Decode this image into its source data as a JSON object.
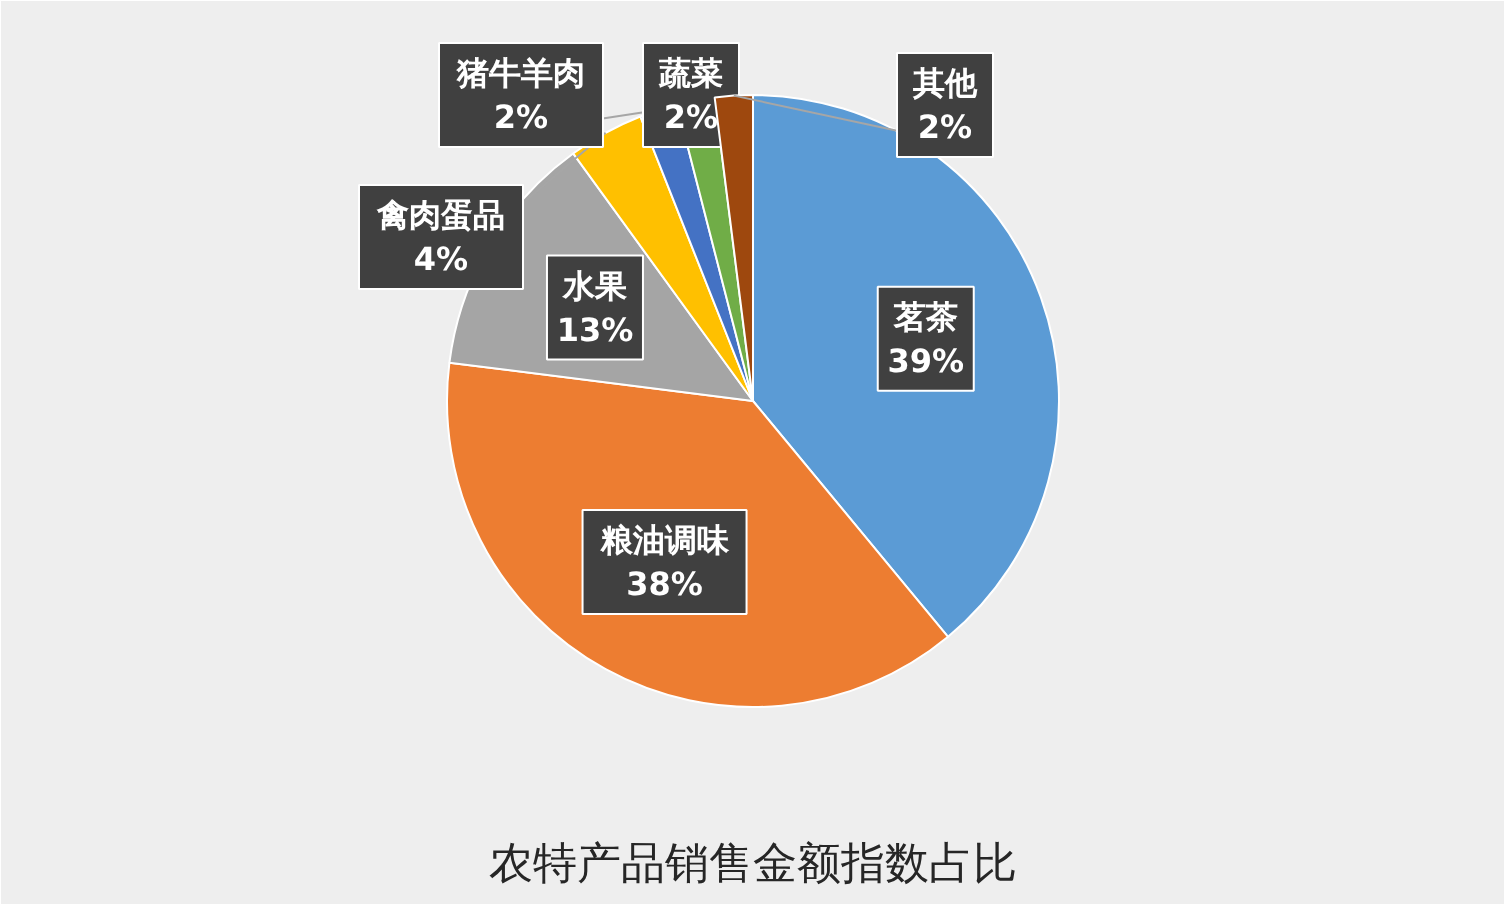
{
  "chart_data": {
    "type": "pie",
    "title": "农特产品销售金额指数占比",
    "categories": [
      "茗茶",
      "粮油调味",
      "水果",
      "禽肉蛋品",
      "猪牛羊肉",
      "蔬菜",
      "其他"
    ],
    "values": [
      39,
      38,
      13,
      4,
      2,
      2,
      2
    ],
    "value_labels": [
      "39%",
      "38%",
      "13%",
      "4%",
      "2%",
      "2%",
      "2%"
    ],
    "colors": [
      "#5b9bd5",
      "#ed7d31",
      "#a5a5a5",
      "#ffc000",
      "#4472c4",
      "#70ad47",
      "#9e480e"
    ]
  }
}
